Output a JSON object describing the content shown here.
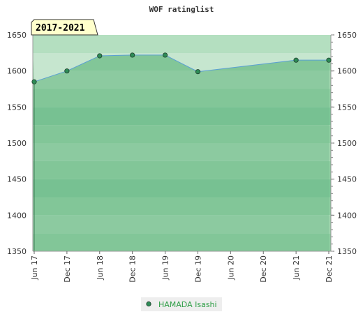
{
  "chart_data": {
    "type": "area",
    "title": "WOF ratinglist",
    "period_label": "2017-2021",
    "xlabel": "",
    "ylabel": "",
    "ylim": [
      1350,
      1650
    ],
    "yticks": [
      1350,
      1400,
      1450,
      1500,
      1550,
      1600,
      1650
    ],
    "categories": [
      "Jun 17",
      "Dec 17",
      "Jun 18",
      "Dec 18",
      "Jun 19",
      "Dec 19",
      "Jun 20",
      "Dec 20",
      "Jun 21",
      "Dec 21"
    ],
    "series": [
      {
        "name": "HAMADA Isashi",
        "points": [
          {
            "x": "Jun 17",
            "y": 1585
          },
          {
            "x": "Dec 17",
            "y": 1600
          },
          {
            "x": "Jun 18",
            "y": 1621
          },
          {
            "x": "Dec 18",
            "y": 1622
          },
          {
            "x": "Jun 19",
            "y": 1622
          },
          {
            "x": "Dec 19",
            "y": 1599
          },
          {
            "x": "Jun 21",
            "y": 1615
          },
          {
            "x": "Dec 21",
            "y": 1615
          }
        ]
      }
    ],
    "legend_position": "bottom",
    "grid": true,
    "colors": {
      "band_dark": "#7cc596",
      "band_mid": "#8ccc9f",
      "band_light": "#9cd3ab",
      "above_light": "#b4dfc0",
      "above_pale": "#c6e6cf",
      "line": "#5a9fd4",
      "marker": "#2e8b57",
      "badge_bg": "#ffffcc",
      "legend_text": "#2e9e46"
    }
  }
}
